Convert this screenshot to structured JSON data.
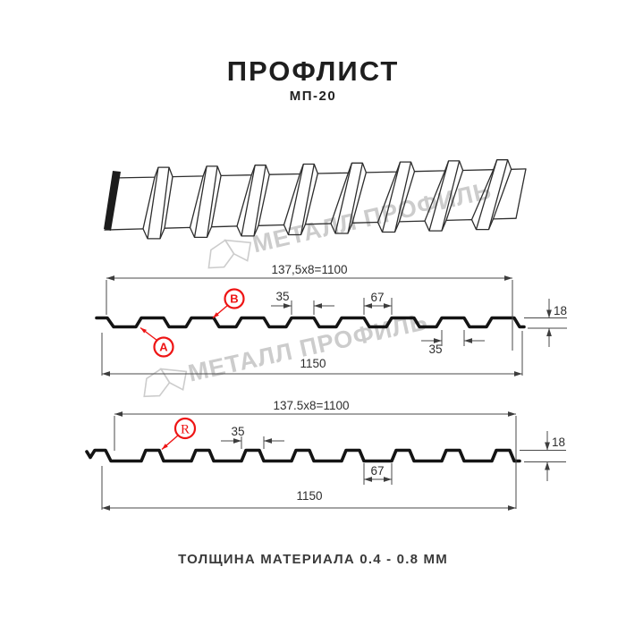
{
  "header": {
    "title": "ПРОФЛИСТ",
    "subtitle": "МП-20"
  },
  "footer": {
    "note": "ТОЛЩИНА МАТЕРИАЛА 0.4 - 0.8 ММ"
  },
  "watermark": {
    "text": "МЕТАЛЛ ПРОФИЛЬ"
  },
  "section_top": {
    "length_formula": "137,5x8=1100",
    "rib_top_width": "35",
    "valley_width": "67",
    "profile_height": "18",
    "rib_bottom_width": "35",
    "total_width": "1150",
    "label_a": "A",
    "label_b": "B"
  },
  "section_bottom": {
    "length_formula": "137.5x8=1100",
    "rib_base_width": "35",
    "profile_height": "18",
    "valley_width": "67",
    "total_width": "1150",
    "label_r": "R"
  },
  "colors": {
    "accent_red": "#ee1414",
    "profile_black": "#141414",
    "drawing_line": "#2d2d2d",
    "dim_gray": "#4a4a4a",
    "dim_text": "#2e2e2e",
    "watermark_gray": "#c7c7c7"
  }
}
